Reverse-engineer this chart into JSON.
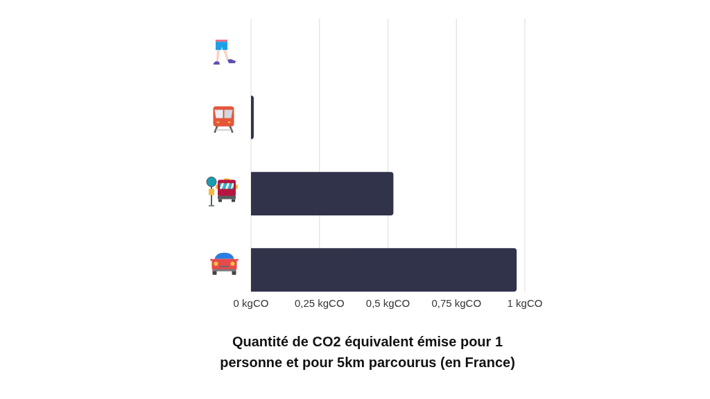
{
  "chart_data": {
    "type": "bar",
    "orientation": "horizontal",
    "title": "Quantité de CO2 équivalent émise pour 1 personne et pour 5km parcourus (en France)",
    "categories": [
      null,
      null,
      null,
      null
    ],
    "values": [
      0,
      0.01,
      0.52,
      0.97
    ],
    "color": "#30334a",
    "xlim": [
      0,
      1
    ],
    "xticks": [
      {
        "value": 0,
        "label": "0 kgCO"
      },
      {
        "value": 0.25,
        "label": "0,25 kgCO"
      },
      {
        "value": 0.5,
        "label": "0,5 kgCO"
      },
      {
        "value": 0.75,
        "label": "0,75 kgCO"
      },
      {
        "value": 1,
        "label": "1 kgCO"
      }
    ],
    "grid": "x"
  }
}
